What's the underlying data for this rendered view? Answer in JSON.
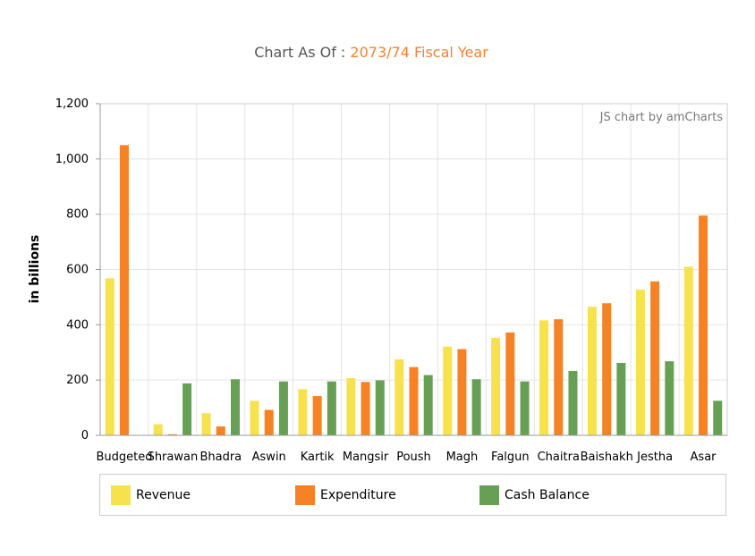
{
  "title": {
    "prefix": "Chart As Of : ",
    "accent": "2073/74 Fiscal Year"
  },
  "credit": "JS chart by amCharts",
  "colors": {
    "revenue": "#f6e24d",
    "expenditure": "#f58224",
    "cash": "#67a055",
    "grid": "#e4e4e4",
    "axis": "#999999"
  },
  "chart_data": {
    "type": "bar",
    "ylabel": "in billions",
    "xlabel": "",
    "ylim": [
      0,
      1200
    ],
    "yticks": [
      0,
      200,
      400,
      600,
      800,
      1000,
      1200
    ],
    "ytick_labels": [
      "0",
      "200",
      "400",
      "600",
      "800",
      "1,000",
      "1,200"
    ],
    "categories": [
      "Budgeted",
      "Shrawan",
      "Bhadra",
      "Aswin",
      "Kartik",
      "Mangsir",
      "Poush",
      "Magh",
      "Falgun",
      "Chaitra",
      "Baishakh",
      "Jestha",
      "Asar"
    ],
    "series": [
      {
        "name": "Revenue",
        "color": "#f6e24d",
        "values": [
          568,
          40,
          80,
          125,
          167,
          207,
          275,
          321,
          353,
          416,
          465,
          527,
          610
        ]
      },
      {
        "name": "Expenditure",
        "color": "#f58224",
        "values": [
          1050,
          4,
          32,
          92,
          142,
          193,
          247,
          312,
          372,
          420,
          478,
          557,
          795
        ]
      },
      {
        "name": "Cash Balance",
        "color": "#67a055",
        "values": [
          null,
          188,
          203,
          195,
          195,
          199,
          218,
          203,
          195,
          233,
          262,
          268,
          125
        ]
      }
    ],
    "legend_position": "bottom",
    "grid": true
  }
}
